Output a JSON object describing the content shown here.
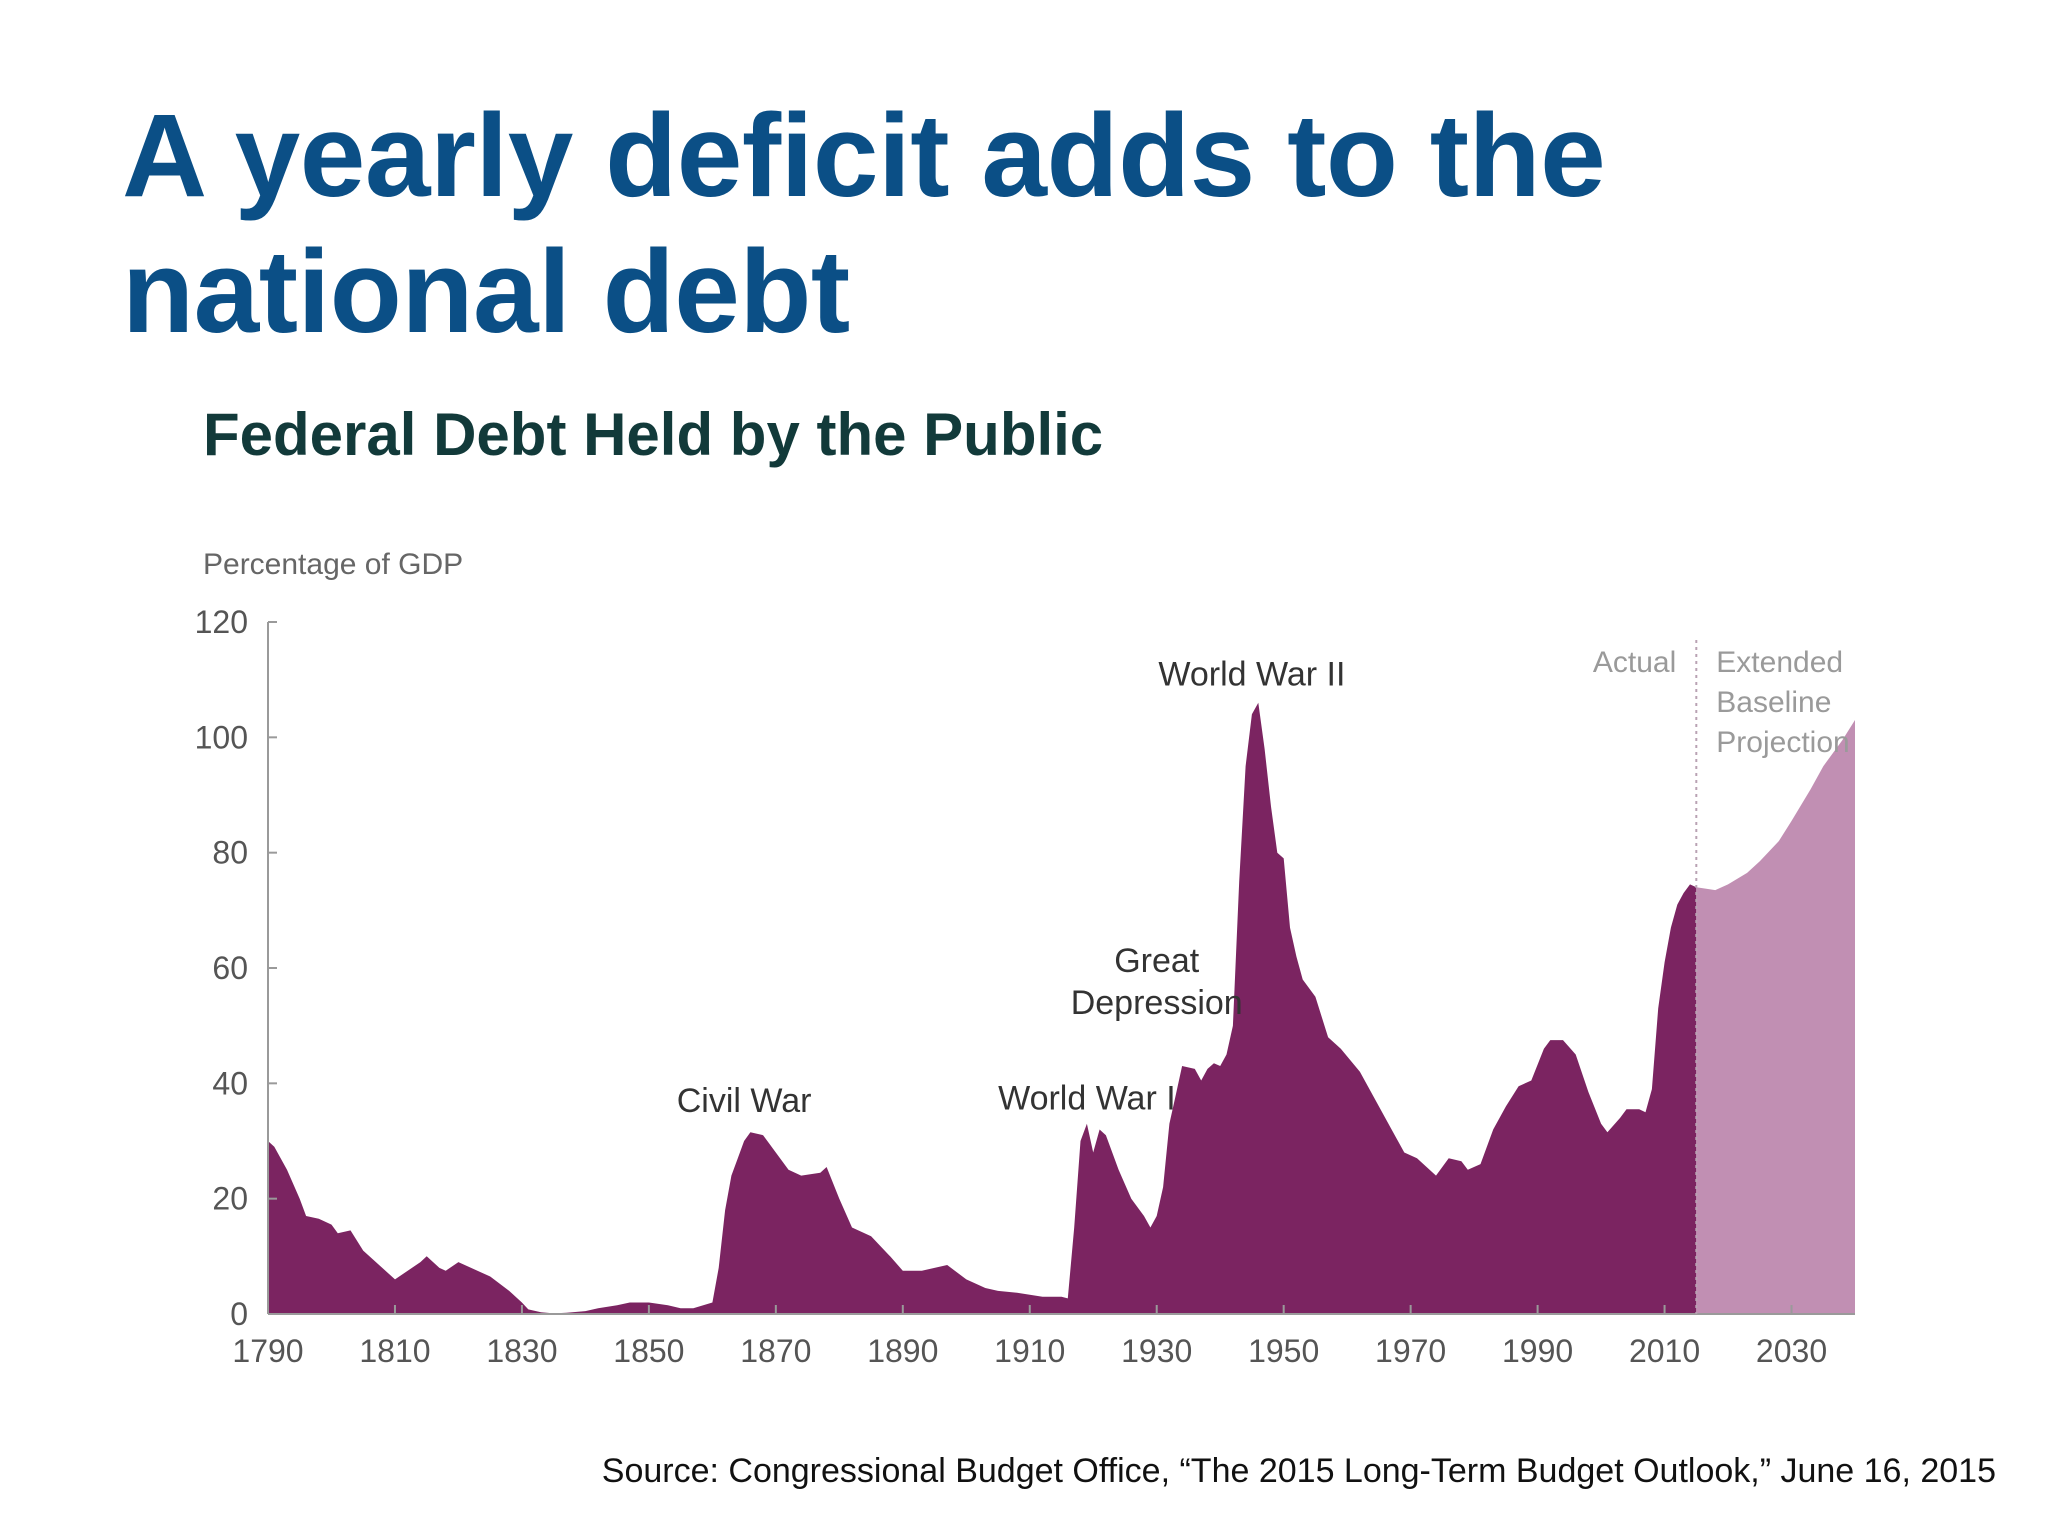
{
  "slide": {
    "title_line1": "A yearly deficit adds to the",
    "title_line2": "national debt",
    "title_color": "#0b4f86",
    "source": "Source: Congressional Budget Office, “The 2015 Long-Term Budget Outlook,” June 16, 2015"
  },
  "chart_data": {
    "type": "area",
    "title": "Federal Debt Held by the Public",
    "ylabel": "Percentage of GDP",
    "xlabel": "",
    "xlim": [
      1790,
      2040
    ],
    "ylim": [
      0,
      120
    ],
    "x_ticks": [
      1790,
      1810,
      1830,
      1850,
      1870,
      1890,
      1910,
      1930,
      1950,
      1970,
      1990,
      2010,
      2030
    ],
    "y_ticks": [
      0,
      20,
      40,
      60,
      80,
      100,
      120
    ],
    "grid": false,
    "divider_year": 2015,
    "section_labels": {
      "actual": "Actual",
      "projection": [
        "Extended",
        "Baseline",
        "Projection"
      ]
    },
    "colors": {
      "actual": "#7b2461",
      "projection": "#c18fb3",
      "axis": "#9a9a9a",
      "tick_label": "#555555",
      "title": "#123a3a",
      "annotation": "#333333",
      "section_label": "#9a9a9a"
    },
    "series": [
      {
        "name": "Actual",
        "points": [
          [
            1790,
            30
          ],
          [
            1791,
            29
          ],
          [
            1793,
            25
          ],
          [
            1795,
            20
          ],
          [
            1796,
            17
          ],
          [
            1798,
            16.5
          ],
          [
            1800,
            15.5
          ],
          [
            1801,
            14
          ],
          [
            1803,
            14.5
          ],
          [
            1805,
            11
          ],
          [
            1808,
            8
          ],
          [
            1810,
            6
          ],
          [
            1812,
            7.5
          ],
          [
            1814,
            9
          ],
          [
            1815,
            10
          ],
          [
            1817,
            8
          ],
          [
            1818,
            7.5
          ],
          [
            1820,
            9
          ],
          [
            1822,
            8
          ],
          [
            1825,
            6.5
          ],
          [
            1828,
            4
          ],
          [
            1830,
            2
          ],
          [
            1831,
            0.8
          ],
          [
            1833,
            0.3
          ],
          [
            1835,
            0.1
          ],
          [
            1837,
            0.2
          ],
          [
            1840,
            0.5
          ],
          [
            1842,
            1
          ],
          [
            1845,
            1.5
          ],
          [
            1847,
            2
          ],
          [
            1850,
            2
          ],
          [
            1853,
            1.5
          ],
          [
            1855,
            1
          ],
          [
            1857,
            1
          ],
          [
            1860,
            2
          ],
          [
            1861,
            8
          ],
          [
            1862,
            18
          ],
          [
            1863,
            24
          ],
          [
            1864,
            27
          ],
          [
            1865,
            30
          ],
          [
            1866,
            31.5
          ],
          [
            1868,
            31
          ],
          [
            1870,
            28
          ],
          [
            1872,
            25
          ],
          [
            1874,
            24
          ],
          [
            1877,
            24.5
          ],
          [
            1878,
            25.5
          ],
          [
            1880,
            20
          ],
          [
            1882,
            15
          ],
          [
            1885,
            13.5
          ],
          [
            1888,
            10
          ],
          [
            1890,
            7.5
          ],
          [
            1893,
            7.5
          ],
          [
            1895,
            8
          ],
          [
            1897,
            8.5
          ],
          [
            1900,
            6
          ],
          [
            1903,
            4.5
          ],
          [
            1905,
            4
          ],
          [
            1908,
            3.7
          ],
          [
            1912,
            3
          ],
          [
            1915,
            3
          ],
          [
            1916,
            2.7
          ],
          [
            1917,
            15
          ],
          [
            1918,
            30
          ],
          [
            1919,
            33
          ],
          [
            1920,
            28
          ],
          [
            1921,
            32
          ],
          [
            1922,
            31
          ],
          [
            1924,
            25
          ],
          [
            1926,
            20
          ],
          [
            1928,
            17
          ],
          [
            1929,
            15
          ],
          [
            1930,
            17
          ],
          [
            1931,
            22
          ],
          [
            1932,
            33
          ],
          [
            1933,
            38
          ],
          [
            1934,
            43
          ],
          [
            1936,
            42.5
          ],
          [
            1937,
            40.5
          ],
          [
            1938,
            42.5
          ],
          [
            1939,
            43.5
          ],
          [
            1940,
            43
          ],
          [
            1941,
            45
          ],
          [
            1942,
            50
          ],
          [
            1943,
            75
          ],
          [
            1944,
            95
          ],
          [
            1945,
            104
          ],
          [
            1946,
            106
          ],
          [
            1947,
            98
          ],
          [
            1948,
            88
          ],
          [
            1949,
            80
          ],
          [
            1950,
            79
          ],
          [
            1951,
            67
          ],
          [
            1952,
            62
          ],
          [
            1953,
            58
          ],
          [
            1955,
            55
          ],
          [
            1957,
            48
          ],
          [
            1959,
            46
          ],
          [
            1962,
            42
          ],
          [
            1965,
            36
          ],
          [
            1967,
            32
          ],
          [
            1969,
            28
          ],
          [
            1971,
            27
          ],
          [
            1974,
            24
          ],
          [
            1976,
            27
          ],
          [
            1978,
            26.5
          ],
          [
            1979,
            25
          ],
          [
            1981,
            26
          ],
          [
            1983,
            32
          ],
          [
            1985,
            36
          ],
          [
            1987,
            39.5
          ],
          [
            1989,
            40.5
          ],
          [
            1991,
            46
          ],
          [
            1992,
            47.5
          ],
          [
            1994,
            47.5
          ],
          [
            1996,
            45
          ],
          [
            1998,
            38.5
          ],
          [
            2000,
            33
          ],
          [
            2001,
            31.5
          ],
          [
            2003,
            34
          ],
          [
            2004,
            35.5
          ],
          [
            2006,
            35.5
          ],
          [
            2007,
            35
          ],
          [
            2008,
            39
          ],
          [
            2009,
            53
          ],
          [
            2010,
            61
          ],
          [
            2011,
            67
          ],
          [
            2012,
            71
          ],
          [
            2013,
            73
          ],
          [
            2014,
            74.5
          ],
          [
            2015,
            74
          ]
        ]
      },
      {
        "name": "Extended Baseline Projection",
        "points": [
          [
            2015,
            74
          ],
          [
            2018,
            73.5
          ],
          [
            2020,
            74.5
          ],
          [
            2023,
            76.5
          ],
          [
            2025,
            78.5
          ],
          [
            2028,
            82
          ],
          [
            2030,
            85.5
          ],
          [
            2033,
            91
          ],
          [
            2035,
            95
          ],
          [
            2038,
            99.5
          ],
          [
            2040,
            103
          ]
        ]
      }
    ],
    "annotations": [
      {
        "text": [
          "Civil War"
        ],
        "x": 1865,
        "y": 35
      },
      {
        "text": [
          "World War I"
        ],
        "x": 1919,
        "y": 35.5
      },
      {
        "text": [
          "Great",
          "Depression"
        ],
        "x": 1930,
        "y": 52
      },
      {
        "text": [
          "World War II"
        ],
        "x": 1945,
        "y": 109
      }
    ]
  }
}
